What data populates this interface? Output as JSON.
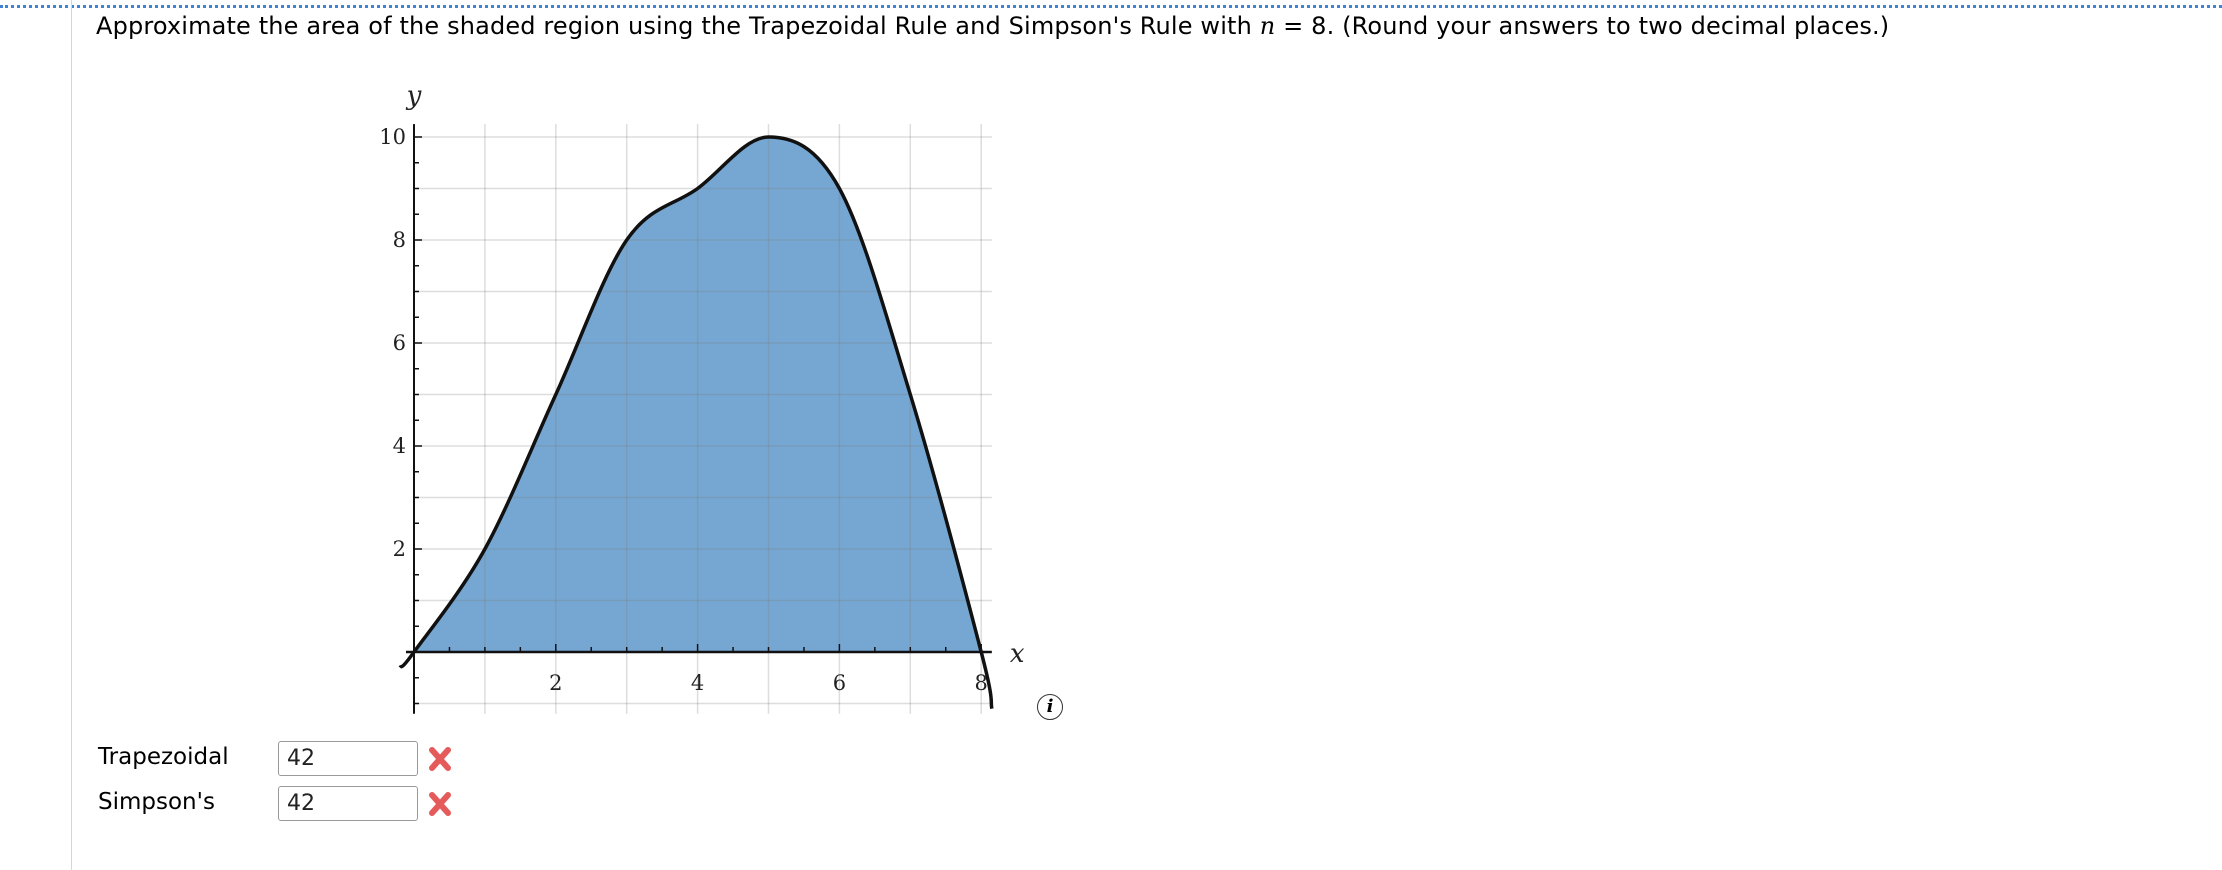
{
  "question": {
    "text_before": "Approximate the area of the shaded region using the Trapezoidal Rule and Simpson's Rule with ",
    "var": "n",
    "text_after": " = 8. (Round your answers to two decimal places.)"
  },
  "chart_data": {
    "type": "area",
    "xlabel": "x",
    "ylabel": "y",
    "x": [
      0,
      1,
      2,
      3,
      4,
      5,
      6,
      7,
      8
    ],
    "y": [
      0,
      2,
      5,
      8,
      9,
      10,
      9,
      5,
      0
    ],
    "xlim": [
      0,
      8.15
    ],
    "ylim": [
      -1.2,
      10.25
    ],
    "xticks": [
      2,
      4,
      6,
      8
    ],
    "yticks": [
      2,
      4,
      6,
      8,
      10
    ],
    "grid": true,
    "fill_color": "#76a7d2",
    "line_color": "#111111"
  },
  "info_icon": "info-icon",
  "answers": [
    {
      "label": "Trapezoidal",
      "value": "42",
      "status": "incorrect",
      "status_icon": "x-mark-icon"
    },
    {
      "label": "Simpson's",
      "value": "42",
      "status": "incorrect",
      "status_icon": "x-mark-icon"
    }
  ],
  "colors": {
    "incorrect": "#e55b5b",
    "border_dots": "#3f82d6"
  }
}
